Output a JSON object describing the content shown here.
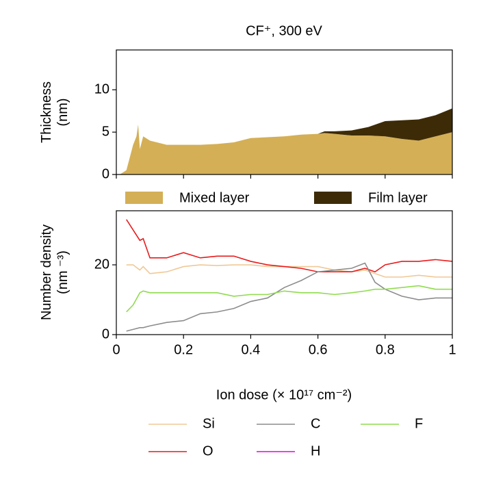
{
  "chart_data": [
    {
      "type": "area",
      "stacked": true,
      "title": "CF⁺, 300 eV",
      "ylabel": "Thickness (nm)",
      "x": [
        0.01,
        0.03,
        0.04,
        0.05,
        0.06,
        0.065,
        0.07,
        0.08,
        0.1,
        0.15,
        0.2,
        0.25,
        0.3,
        0.35,
        0.4,
        0.45,
        0.5,
        0.55,
        0.6,
        0.62,
        0.65,
        0.7,
        0.75,
        0.8,
        0.85,
        0.9,
        0.95,
        1.0
      ],
      "series": [
        {
          "name": "Mixed layer",
          "color": "#d4af55",
          "values": [
            0,
            0.5,
            2,
            3.5,
            4.5,
            5.9,
            3,
            4.5,
            4,
            3.5,
            3.5,
            3.5,
            3.6,
            3.8,
            4.3,
            4.4,
            4.5,
            4.7,
            4.8,
            4.9,
            4.8,
            4.6,
            4.6,
            4.5,
            4.2,
            4.0,
            4.5,
            5.0
          ]
        },
        {
          "name": "Film layer",
          "color": "#3d2b08",
          "values": [
            0,
            0,
            0,
            0,
            0,
            0,
            0,
            0,
            0,
            0,
            0,
            0,
            0,
            0,
            0,
            0,
            0,
            0,
            0,
            0.2,
            0.3,
            0.6,
            1.0,
            1.8,
            2.2,
            2.5,
            2.5,
            2.8
          ]
        }
      ],
      "xlim": [
        0,
        1
      ],
      "ylim": [
        0,
        14.7
      ],
      "yticks": [
        0,
        5,
        10
      ]
    },
    {
      "type": "line",
      "ylabel": "Number density (nm ⁻³)",
      "xlabel": "Ion dose (× 10¹⁷ cm⁻²)",
      "x": [
        0.03,
        0.05,
        0.07,
        0.08,
        0.1,
        0.15,
        0.2,
        0.25,
        0.3,
        0.35,
        0.4,
        0.45,
        0.5,
        0.55,
        0.6,
        0.65,
        0.7,
        0.74,
        0.77,
        0.8,
        0.85,
        0.9,
        0.95,
        1.0
      ],
      "series": [
        {
          "name": "Si",
          "color": "#f0c896",
          "values": [
            20,
            20,
            18.5,
            19.5,
            17.5,
            18,
            19.5,
            20,
            19.8,
            20,
            20,
            19.5,
            19.5,
            19.5,
            19.5,
            18.5,
            18,
            18.5,
            17.5,
            16.5,
            16.5,
            17,
            16.5,
            16.5
          ]
        },
        {
          "name": "O",
          "color": "#e8191a",
          "values": [
            33,
            30,
            27,
            27.5,
            22,
            22,
            23.5,
            22,
            22.5,
            22.5,
            21,
            20,
            19.5,
            19,
            18,
            18,
            18,
            19,
            18,
            20,
            21,
            21,
            21.5,
            21
          ]
        },
        {
          "name": "C",
          "color": "#8c8c8c",
          "values": [
            1,
            1.5,
            2,
            2,
            2.5,
            3.5,
            4,
            6,
            6.5,
            7.5,
            9.5,
            10.5,
            13.5,
            15.5,
            18,
            18.5,
            19,
            20.5,
            15,
            13,
            11,
            10,
            10.5,
            10.5
          ]
        },
        {
          "name": "H",
          "color": "#e600e6",
          "values": [
            null,
            null,
            null,
            null,
            null,
            null,
            null,
            null,
            null,
            null,
            null,
            null,
            null,
            null,
            null,
            null,
            null,
            null,
            null,
            null,
            null,
            null,
            null,
            null
          ]
        },
        {
          "name": "F",
          "color": "#8fdc4e",
          "values": [
            6.5,
            8.5,
            12,
            12.5,
            12,
            12,
            12,
            12,
            12,
            11,
            11.5,
            11.5,
            12.5,
            12,
            12,
            11.5,
            12,
            12.5,
            13,
            13,
            13.5,
            14,
            13,
            13
          ]
        }
      ],
      "xlim": [
        0,
        1
      ],
      "ylim": [
        0,
        35.5
      ],
      "xticks": [
        0,
        0.2,
        0.4,
        0.6,
        0.8,
        1
      ],
      "yticks": [
        0,
        20
      ]
    }
  ]
}
